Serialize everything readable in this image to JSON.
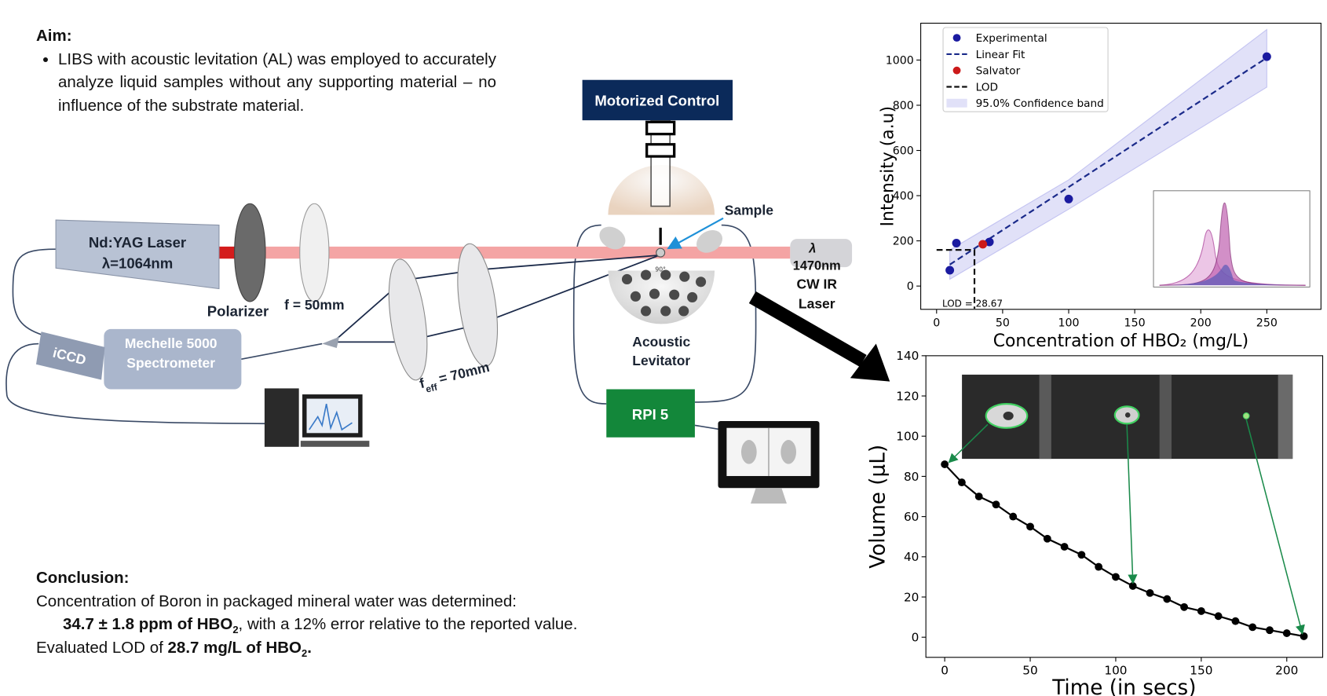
{
  "aim": {
    "heading": "Aim:",
    "bullet": "LIBS with acoustic levitation (AL) was employed to accurately analyze liquid samples without any supporting material – no influence of the substrate material."
  },
  "conclusion": {
    "heading": "Conclusion:",
    "line1": "Concentration of Boron in packaged mineral water was determined:",
    "line2": {
      "bold": "34.7 ± 1.8 ppm of HBO",
      "sub": "2",
      "rest": ", with a 12% error relative to the reported value."
    },
    "line3": {
      "pre": "Evaluated LOD of ",
      "bold": "28.7 mg/L of HBO",
      "sub": "2",
      "end": "."
    }
  },
  "diagram": {
    "motorized_control": "Motorized Control",
    "sample": "Sample",
    "laser": "Nd:YAG Laser",
    "laser_wavelength": "λ=1064nm",
    "polarizer": "Polarizer",
    "lens1": "f = 50mm",
    "lens2": {
      "f": "f",
      "sub": "eff",
      "rest": " = 70mm"
    },
    "angle": "90°",
    "cw_laser": [
      "λ",
      "1470nm",
      "CW IR",
      "Laser"
    ],
    "levitator": [
      "Acoustic",
      "Levitator"
    ],
    "iccd": "iCCD",
    "spectrometer": [
      "Mechelle 5000",
      "Spectrometer"
    ],
    "rpi": "RPI 5"
  },
  "chart_data": [
    {
      "type": "scatter",
      "xlabel": "Concentration of HBO₂ (mg/L)",
      "ylabel": "Intensity (a.u)",
      "annotation": "LOD = 28.67",
      "xlim": [
        -12,
        291
      ],
      "ylim": [
        -103,
        1163
      ],
      "xticks": [
        0,
        50,
        100,
        150,
        200,
        250
      ],
      "yticks": [
        0,
        200,
        400,
        600,
        800,
        1000
      ],
      "legend": "upper left",
      "series": [
        {
          "name": "Experimental",
          "type": "scatter",
          "color": "#1a1aa0",
          "x": [
            10,
            15,
            40,
            100,
            250
          ],
          "values": [
            70,
            190,
            195,
            385,
            1015
          ]
        },
        {
          "name": "Linear Fit",
          "type": "line",
          "color": "#1a2a8a",
          "dash": true,
          "x": [
            10,
            250
          ],
          "values": [
            95,
            1010
          ]
        },
        {
          "name": "Salvator",
          "type": "scatter",
          "color": "#cc1a1a",
          "x": [
            35
          ],
          "values": [
            185
          ]
        },
        {
          "name": "LOD",
          "type": "line",
          "color": "#111111",
          "dash": true,
          "x": [
            0,
            28.67,
            28.67
          ],
          "values": [
            160,
            160,
            -100
          ]
        },
        {
          "name": "95.0% Confidence band",
          "type": "band",
          "color": "#9a9ae8",
          "x": [
            10,
            100,
            250
          ],
          "lower": [
            30,
            340,
            880
          ],
          "upper": [
            160,
            470,
            1135
          ]
        }
      ]
    },
    {
      "type": "line",
      "xlabel": "Time (in secs)",
      "ylabel": "Volume (μL)",
      "xlim": [
        -11,
        221
      ],
      "ylim": [
        -10,
        140
      ],
      "xticks": [
        0,
        50,
        100,
        150,
        200
      ],
      "yticks": [
        0,
        20,
        40,
        60,
        80,
        100,
        120,
        140
      ],
      "color": "#000000",
      "x": [
        0,
        10,
        20,
        30,
        40,
        50,
        60,
        70,
        80,
        90,
        100,
        110,
        120,
        130,
        140,
        150,
        160,
        170,
        180,
        190,
        200,
        210
      ],
      "values": [
        86,
        77,
        70,
        66,
        60,
        55,
        49,
        45,
        41,
        35,
        30,
        25.5,
        22,
        19,
        15,
        13,
        10.5,
        8,
        5,
        3.5,
        2,
        0.5
      ]
    }
  ]
}
